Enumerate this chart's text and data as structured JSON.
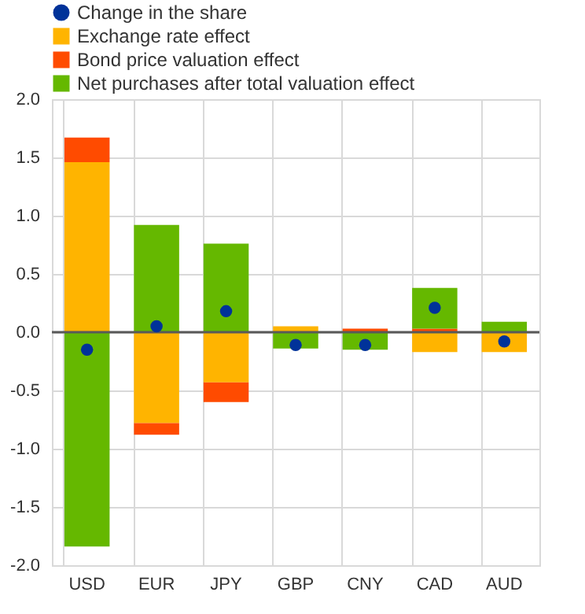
{
  "chart_data": {
    "type": "bar",
    "stacked": true,
    "categories": [
      "USD",
      "EUR",
      "JPY",
      "GBP",
      "CNY",
      "CAD",
      "AUD"
    ],
    "series": [
      {
        "name": "Change in the share",
        "type": "scatter",
        "color": "#003299",
        "marker": "circle",
        "x": [
          "USD",
          "EUR",
          "JPY",
          "GBP",
          "CNY",
          "CAD",
          "AUD"
        ],
        "values": [
          -0.15,
          0.05,
          0.18,
          -0.11,
          -0.11,
          0.21,
          -0.08
        ]
      },
      {
        "name": "Exchange rate effect",
        "color": "#ffb400",
        "values": [
          1.46,
          -0.78,
          -0.43,
          0.05,
          0.0,
          -0.17,
          -0.17
        ]
      },
      {
        "name": "Bond price valuation effect",
        "color": "#ff4b00",
        "values": [
          0.21,
          -0.1,
          -0.17,
          null,
          0.03,
          0.03,
          0.0
        ]
      },
      {
        "name": "Net purchases after total valuation effect",
        "color": "#65b800",
        "values": [
          -1.84,
          0.92,
          0.76,
          -0.14,
          -0.15,
          0.35,
          0.09
        ]
      }
    ],
    "ylim": [
      -2.0,
      2.0
    ],
    "yticks": [
      {
        "value": -2,
        "label": "-2.0"
      },
      {
        "value": -1.5,
        "label": "-1.5"
      },
      {
        "value": -1,
        "label": "-1.0"
      },
      {
        "value": -0.5,
        "label": "-0.5"
      },
      {
        "value": 0,
        "label": "0.0"
      },
      {
        "value": 0.5,
        "label": "0.5"
      },
      {
        "value": 1,
        "label": "1.0"
      },
      {
        "value": 1.5,
        "label": "1.5"
      },
      {
        "value": 2,
        "label": "2.0"
      }
    ],
    "ref_lines": [
      {
        "axis": "y",
        "value": 0,
        "color": "#595959"
      }
    ],
    "grid": true,
    "legend": "top left"
  }
}
